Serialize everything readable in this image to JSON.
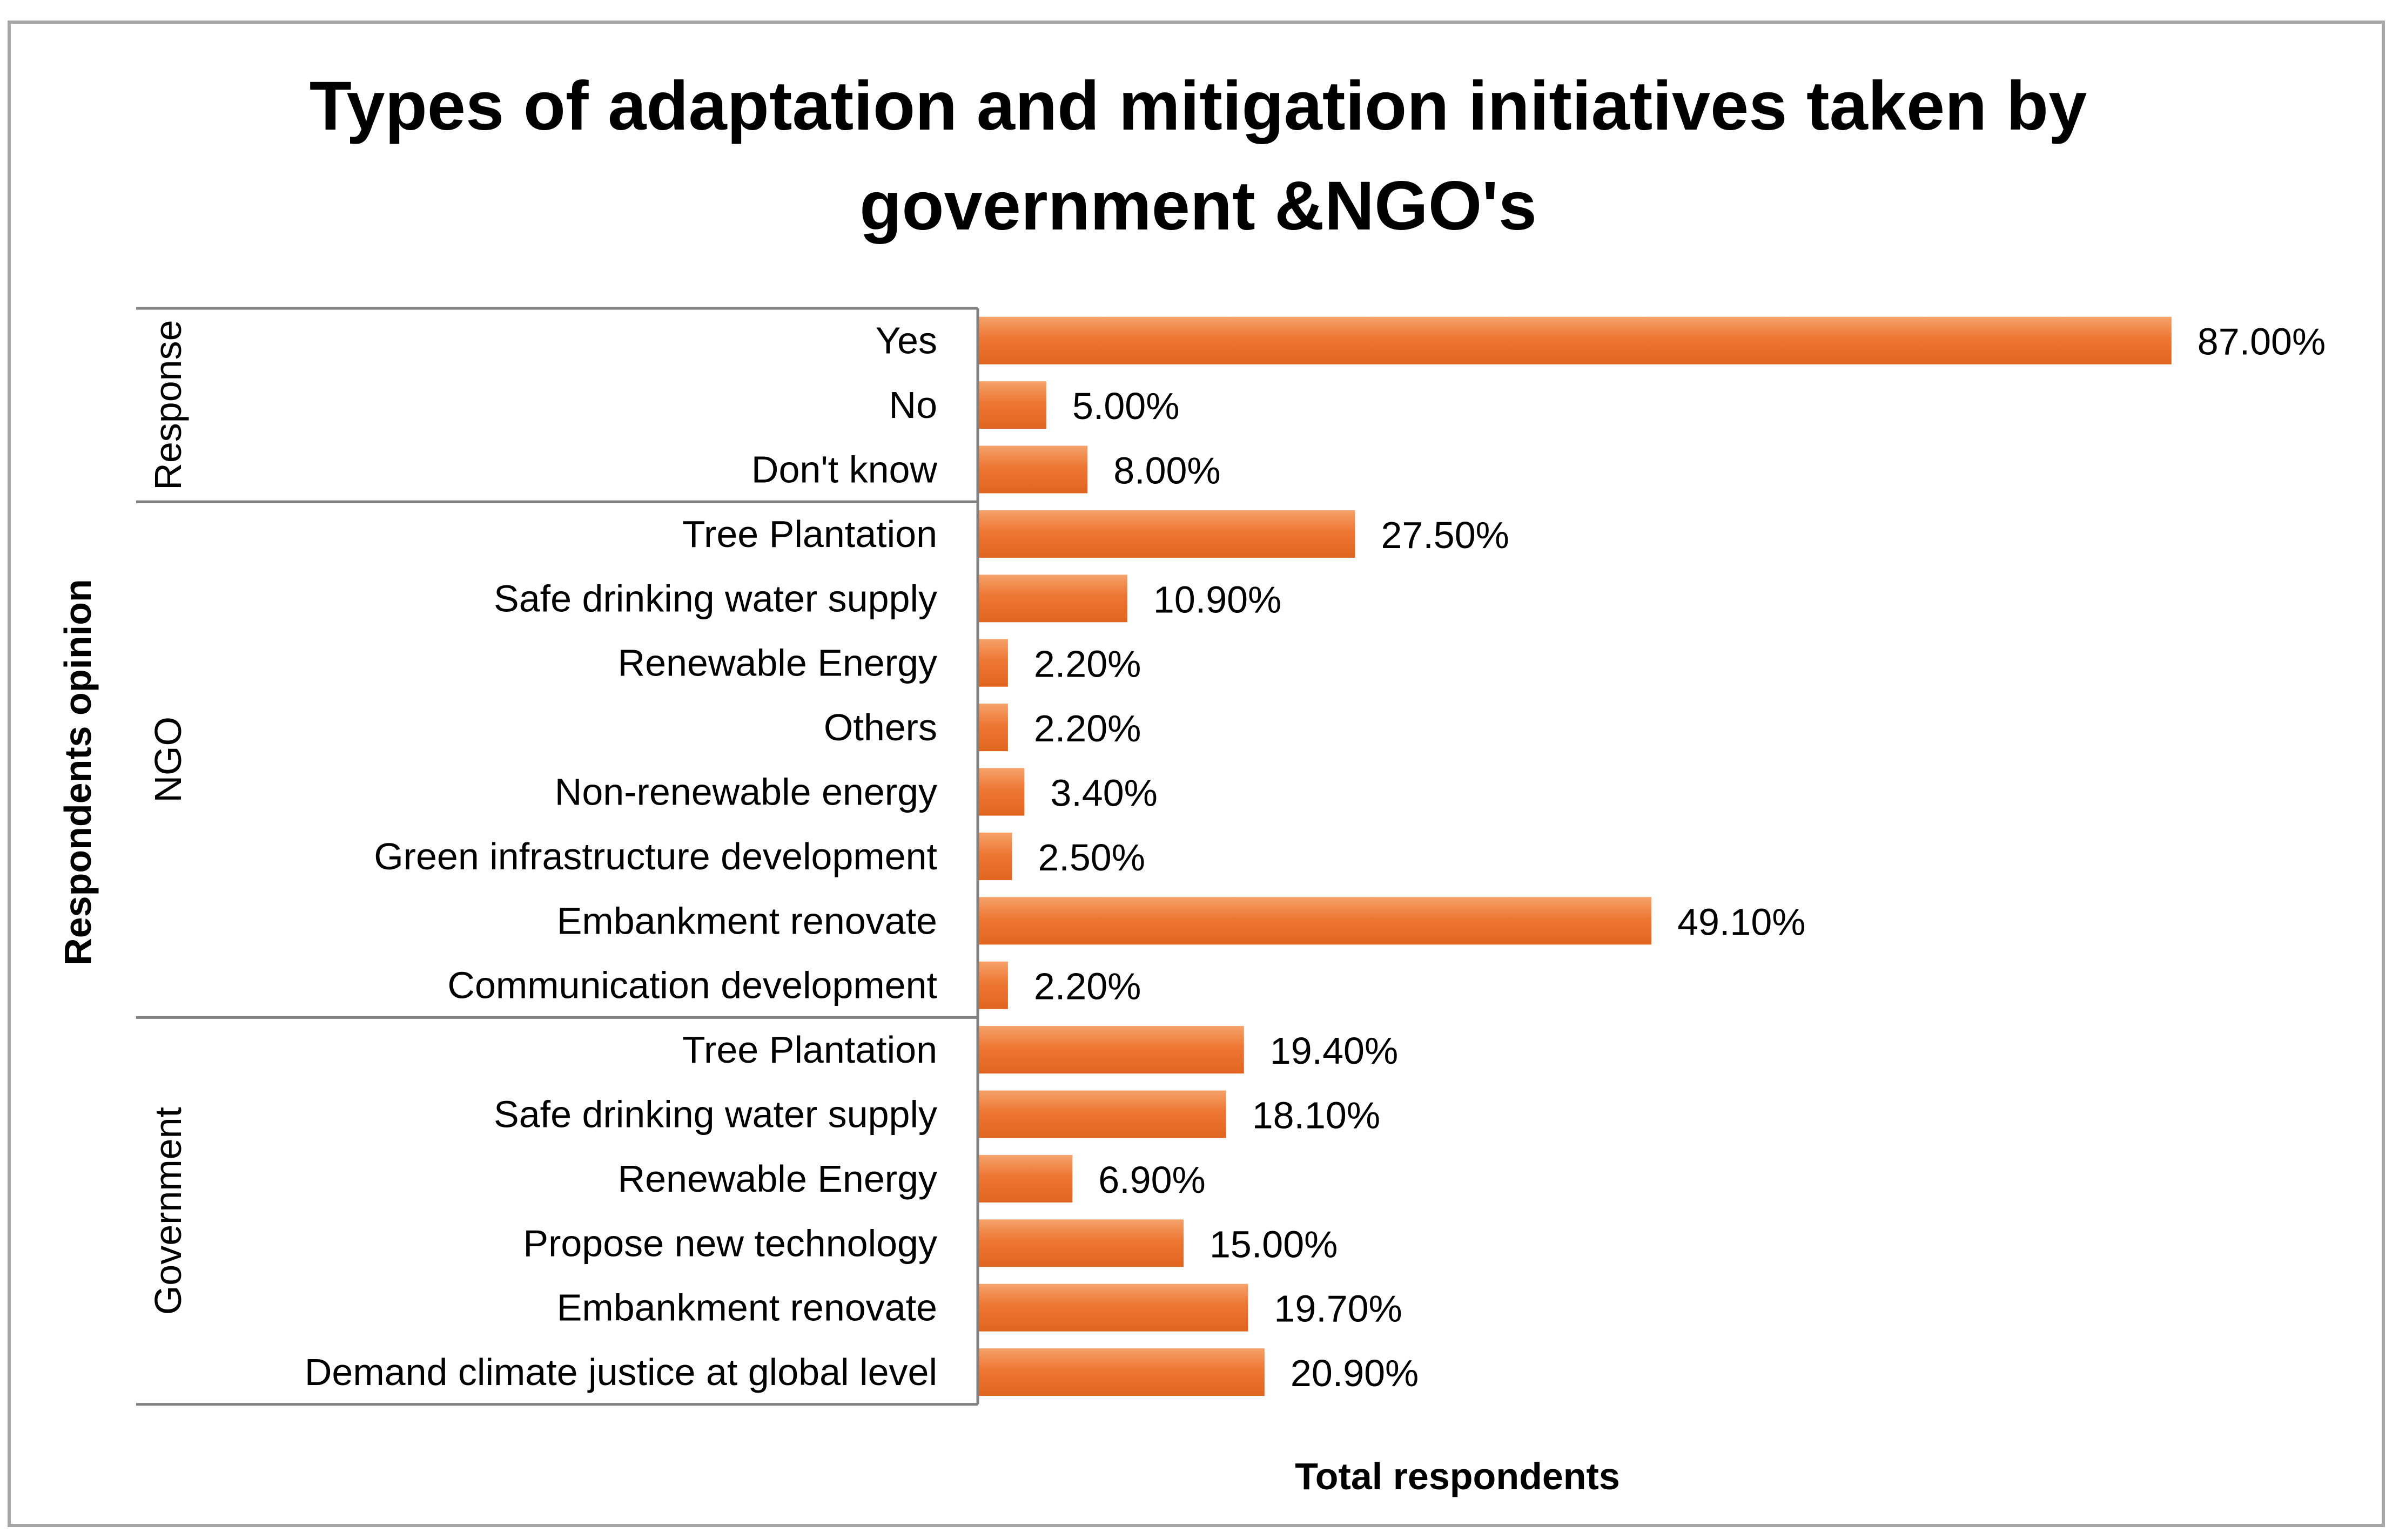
{
  "chart_data": {
    "type": "bar",
    "orientation": "horizontal",
    "title_lines": [
      "Types of adaptation and mitigation initiatives taken by",
      "government &NGO's"
    ],
    "xlabel": "Total respondents",
    "ylabel": "Respondents opinion",
    "xlim": [
      0,
      100
    ],
    "grid": false,
    "bar_color": "#ee7734",
    "groups": [
      {
        "name": "Response",
        "items": [
          {
            "label": "Yes",
            "value": 87.0,
            "display": "87.00%"
          },
          {
            "label": "No",
            "value": 5.0,
            "display": "5.00%"
          },
          {
            "label": "Don't know",
            "value": 8.0,
            "display": "8.00%"
          }
        ]
      },
      {
        "name": "NGO",
        "items": [
          {
            "label": "Tree Plantation",
            "value": 27.5,
            "display": "27.50%"
          },
          {
            "label": "Safe drinking water supply",
            "value": 10.9,
            "display": "10.90%"
          },
          {
            "label": "Renewable Energy",
            "value": 2.2,
            "display": "2.20%"
          },
          {
            "label": "Others",
            "value": 2.2,
            "display": "2.20%"
          },
          {
            "label": "Non-renewable energy",
            "value": 3.4,
            "display": "3.40%"
          },
          {
            "label": "Green infrastructure development",
            "value": 2.5,
            "display": "2.50%"
          },
          {
            "label": "Embankment renovate",
            "value": 49.1,
            "display": "49.10%"
          },
          {
            "label": "Communication development",
            "value": 2.2,
            "display": "2.20%"
          }
        ]
      },
      {
        "name": "Government",
        "items": [
          {
            "label": "Tree Plantation",
            "value": 19.4,
            "display": "19.40%"
          },
          {
            "label": "Safe drinking water supply",
            "value": 18.1,
            "display": "18.10%"
          },
          {
            "label": "Renewable Energy",
            "value": 6.9,
            "display": "6.90%"
          },
          {
            "label": "Propose new technology",
            "value": 15.0,
            "display": "15.00%"
          },
          {
            "label": "Embankment renovate",
            "value": 19.7,
            "display": "19.70%"
          },
          {
            "label": "Demand climate justice at global level",
            "value": 20.9,
            "display": "20.90%"
          }
        ]
      }
    ]
  }
}
